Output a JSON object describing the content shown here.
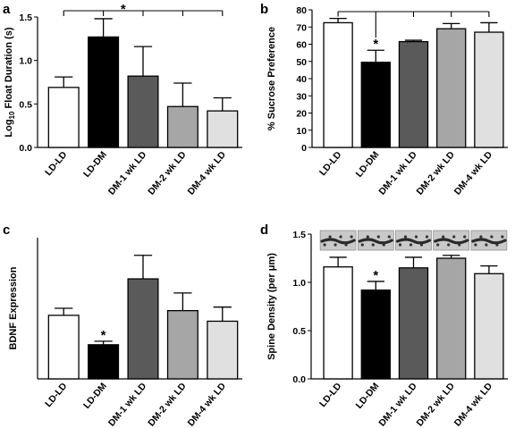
{
  "colors": [
    "#ffffff",
    "#000000",
    "#5a5a5a",
    "#a6a6a6",
    "#e0e0e0"
  ],
  "chart_data": [
    {
      "panel": "a",
      "type": "bar",
      "categories": [
        "LD-LD",
        "LD-DM",
        "DM-1 wk LD",
        "DM-2 wk LD",
        "DM-4 wk LD"
      ],
      "values": [
        0.69,
        1.27,
        0.82,
        0.47,
        0.42
      ],
      "errors": [
        0.12,
        0.21,
        0.34,
        0.27,
        0.15
      ],
      "ylabel_main": "Log",
      "ylabel_sub": "10",
      "ylabel_rest": " Float Duration (s)",
      "ylim": [
        0,
        1.5
      ],
      "yticks": [
        "0.0",
        "0.5",
        "1.0",
        "1.5"
      ],
      "significance": {
        "label": "*",
        "from": 0,
        "to": [
          1,
          2,
          3,
          4
        ]
      }
    },
    {
      "panel": "b",
      "type": "bar",
      "categories": [
        "LD-LD",
        "LD-DM",
        "DM-1 wk LD",
        "DM-2 wk LD",
        "DM-4 wk LD"
      ],
      "values": [
        72.5,
        49.5,
        61.5,
        69.0,
        67.0
      ],
      "errors": [
        2.5,
        7.0,
        0.8,
        3.0,
        5.5
      ],
      "ylabel": "% Sucrose Preference",
      "ylim": [
        0,
        80
      ],
      "yticks": [
        "0",
        "10",
        "20",
        "30",
        "40",
        "50",
        "60",
        "70",
        "80"
      ],
      "significance": {
        "label": "*",
        "bar": 1,
        "from": 1,
        "to": [
          0,
          2,
          3,
          4
        ]
      }
    },
    {
      "panel": "c",
      "type": "bar",
      "categories": [
        "LD-LD",
        "LD-DM",
        "DM-1 wk LD",
        "DM-2 wk LD",
        "DM-4 wk LD"
      ],
      "values": [
        2.7,
        1.45,
        4.25,
        2.9,
        2.45
      ],
      "errors": [
        0.3,
        0.15,
        1.0,
        0.75,
        0.6
      ],
      "ylabel": "BDNF Expression",
      "ylim": [
        0,
        6
      ],
      "yticks": [],
      "significance": {
        "label": "*",
        "bar": 1
      }
    },
    {
      "panel": "d",
      "type": "bar",
      "categories": [
        "LD-LD",
        "LD-DM",
        "DM-1 wk LD",
        "DM-2 wk LD",
        "DM-4 wk LD"
      ],
      "values": [
        1.16,
        0.92,
        1.15,
        1.25,
        1.09
      ],
      "errors": [
        0.1,
        0.09,
        0.11,
        0.03,
        0.08
      ],
      "ylabel": "Spine Density (per  μm)",
      "ylim": [
        0,
        1.5
      ],
      "yticks": [
        "0.0",
        "0.5",
        "1.0",
        "1.5"
      ],
      "significance": {
        "label": "*",
        "bar": 1
      },
      "insets": "dendrite-micrographs"
    }
  ]
}
